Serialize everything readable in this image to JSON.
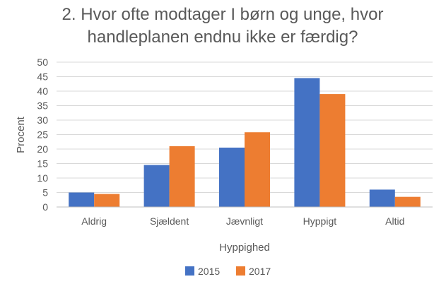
{
  "chart_data": {
    "type": "bar",
    "title": "2. Hvor ofte modtager I børn og unge, hvor handleplanen endnu ikke er færdig?",
    "title_lines": [
      "2. Hvor ofte modtager I børn og unge, hvor",
      "handleplanen endnu ikke er færdig?"
    ],
    "categories": [
      "Aldrig",
      "Sjældent",
      "Jævnligt",
      "Hyppigt",
      "Altid"
    ],
    "series": [
      {
        "name": "2015",
        "color": "#4472C4",
        "values": [
          5,
          14.5,
          20.5,
          44.5,
          6
        ]
      },
      {
        "name": "2017",
        "color": "#ED7D31",
        "values": [
          4.5,
          21,
          25.8,
          39,
          3.5
        ]
      }
    ],
    "xlabel": "Hyppighed",
    "ylabel": "Procent",
    "ylim": [
      0,
      50
    ],
    "yticks": [
      0,
      5,
      10,
      15,
      20,
      25,
      30,
      35,
      40,
      45,
      50
    ],
    "grid": true,
    "legend_position": "bottom"
  }
}
